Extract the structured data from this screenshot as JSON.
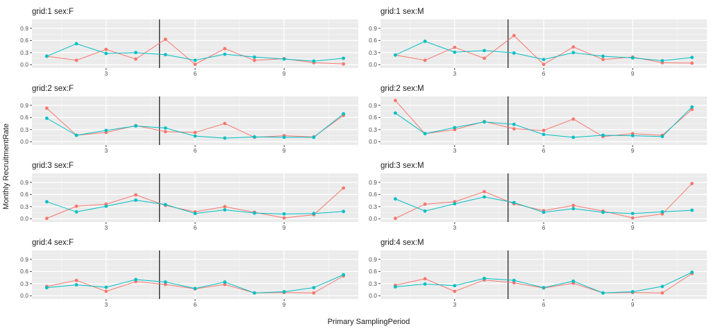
{
  "figure": {
    "ylabel": "Monthly RecruitmentRate",
    "xlabel": "Primary SamplingPeriod"
  },
  "chart_data": {
    "type": "line",
    "facet_layout": {
      "rows": 4,
      "cols": 2
    },
    "x": [
      1,
      2,
      3,
      4,
      5,
      6,
      7,
      8,
      9,
      10,
      11
    ],
    "x_ticks": [
      3,
      6,
      9
    ],
    "x_minor": [
      1.5,
      4.5,
      7.5,
      10.5
    ],
    "y_ticks": [
      "0.0",
      "0.3",
      "0.6",
      "0.9"
    ],
    "y_tick_values": [
      0.0,
      0.3,
      0.6,
      0.9
    ],
    "y_minor": [
      0.15,
      0.45,
      0.75,
      1.05
    ],
    "x_range": [
      0.5,
      11.5
    ],
    "y_range": [
      -0.08,
      1.12
    ],
    "vline_x": 4.8,
    "legend": "none",
    "grid": "major-and-minor",
    "colors": {
      "series_red": "#F8766D",
      "series_teal": "#00BFC4",
      "panel_bg": "#EBEBEB",
      "grid_major": "#FFFFFF",
      "grid_minor": "#F7F7F7",
      "vline": "#000000",
      "tick_mark": "#333333",
      "tick_text": "#4d4d4d"
    },
    "panels": [
      {
        "label": "grid:1 sex:F",
        "series": [
          {
            "name": "red",
            "values": [
              0.21,
              0.11,
              0.38,
              0.14,
              0.63,
              0.01,
              0.4,
              0.11,
              0.15,
              0.05,
              0.02
            ]
          },
          {
            "name": "teal",
            "values": [
              0.21,
              0.52,
              0.28,
              0.3,
              0.25,
              0.11,
              0.26,
              0.19,
              0.14,
              0.09,
              0.16
            ]
          }
        ]
      },
      {
        "label": "grid:1 sex:M",
        "series": [
          {
            "name": "red",
            "values": [
              0.24,
              0.11,
              0.43,
              0.16,
              0.72,
              0.01,
              0.44,
              0.13,
              0.19,
              0.05,
              0.04
            ]
          },
          {
            "name": "teal",
            "values": [
              0.24,
              0.58,
              0.31,
              0.35,
              0.29,
              0.13,
              0.3,
              0.21,
              0.17,
              0.1,
              0.18
            ]
          }
        ]
      },
      {
        "label": "grid:2 sex:F",
        "series": [
          {
            "name": "red",
            "values": [
              0.83,
              0.16,
              0.23,
              0.4,
              0.25,
              0.23,
              0.45,
              0.11,
              0.15,
              0.12,
              0.65
            ]
          },
          {
            "name": "teal",
            "values": [
              0.58,
              0.16,
              0.28,
              0.39,
              0.34,
              0.14,
              0.09,
              0.12,
              0.11,
              0.11,
              0.69
            ]
          }
        ]
      },
      {
        "label": "grid:2 sex:M",
        "series": [
          {
            "name": "red",
            "values": [
              1.02,
              0.2,
              0.3,
              0.5,
              0.32,
              0.28,
              0.56,
              0.13,
              0.2,
              0.16,
              0.8
            ]
          },
          {
            "name": "teal",
            "values": [
              0.71,
              0.2,
              0.35,
              0.49,
              0.43,
              0.18,
              0.11,
              0.16,
              0.15,
              0.13,
              0.86
            ]
          }
        ]
      },
      {
        "label": "grid:3 sex:F",
        "series": [
          {
            "name": "red",
            "values": [
              0.01,
              0.31,
              0.36,
              0.59,
              0.33,
              0.17,
              0.3,
              0.16,
              0.02,
              0.1,
              0.76
            ]
          },
          {
            "name": "teal",
            "values": [
              0.42,
              0.17,
              0.31,
              0.46,
              0.35,
              0.13,
              0.22,
              0.14,
              0.12,
              0.13,
              0.18
            ]
          }
        ]
      },
      {
        "label": "grid:3 sex:M",
        "series": [
          {
            "name": "red",
            "values": [
              0.01,
              0.36,
              0.42,
              0.67,
              0.37,
              0.2,
              0.33,
              0.19,
              0.02,
              0.12,
              0.87
            ]
          },
          {
            "name": "teal",
            "values": [
              0.49,
              0.19,
              0.37,
              0.54,
              0.4,
              0.16,
              0.25,
              0.16,
              0.13,
              0.17,
              0.21
            ]
          }
        ]
      },
      {
        "label": "grid:4 sex:F",
        "series": [
          {
            "name": "red",
            "values": [
              0.23,
              0.38,
              0.11,
              0.35,
              0.28,
              0.17,
              0.28,
              0.07,
              0.08,
              0.07,
              0.49
            ]
          },
          {
            "name": "teal",
            "values": [
              0.2,
              0.27,
              0.21,
              0.4,
              0.34,
              0.18,
              0.34,
              0.07,
              0.1,
              0.2,
              0.52
            ]
          }
        ]
      },
      {
        "label": "grid:4 sex:M",
        "series": [
          {
            "name": "red",
            "values": [
              0.26,
              0.42,
              0.11,
              0.39,
              0.32,
              0.19,
              0.31,
              0.07,
              0.08,
              0.07,
              0.55
            ]
          },
          {
            "name": "teal",
            "values": [
              0.22,
              0.29,
              0.25,
              0.43,
              0.38,
              0.2,
              0.36,
              0.07,
              0.1,
              0.23,
              0.58
            ]
          }
        ]
      }
    ]
  }
}
